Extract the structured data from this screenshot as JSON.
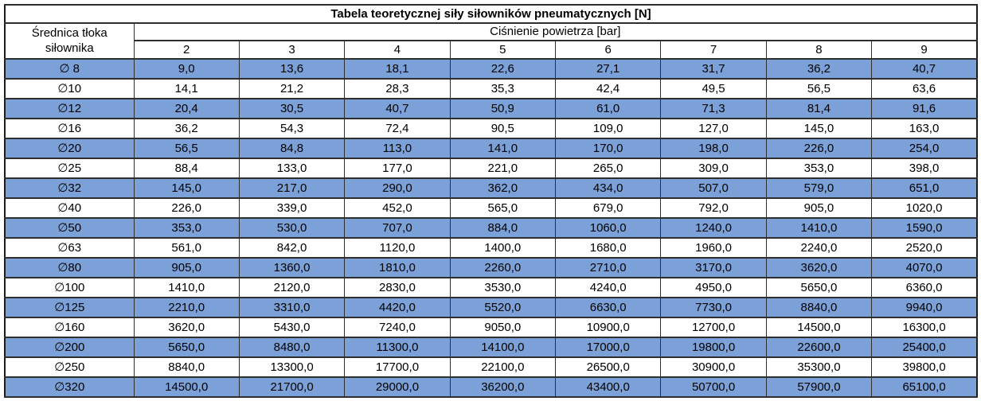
{
  "chart_data": {
    "type": "table",
    "title": "Tabela teoretycznej siły siłowników pneumatycznych [N]",
    "row_header_label": "Średnica tłoka siłownika",
    "column_group_label": "Ciśnienie powietrza [bar]",
    "columns": [
      "2",
      "3",
      "4",
      "5",
      "6",
      "7",
      "8",
      "9"
    ],
    "rows": [
      {
        "diameter": "∅ 8",
        "values": [
          "9,0",
          "13,6",
          "18,1",
          "22,6",
          "27,1",
          "31,7",
          "36,2",
          "40,7"
        ]
      },
      {
        "diameter": "∅10",
        "values": [
          "14,1",
          "21,2",
          "28,3",
          "35,3",
          "42,4",
          "49,5",
          "56,5",
          "63,6"
        ]
      },
      {
        "diameter": "∅12",
        "values": [
          "20,4",
          "30,5",
          "40,7",
          "50,9",
          "61,0",
          "71,3",
          "81,4",
          "91,6"
        ]
      },
      {
        "diameter": "∅16",
        "values": [
          "36,2",
          "54,3",
          "72,4",
          "90,5",
          "109,0",
          "127,0",
          "145,0",
          "163,0"
        ]
      },
      {
        "diameter": "∅20",
        "values": [
          "56,5",
          "84,8",
          "113,0",
          "141,0",
          "170,0",
          "198,0",
          "226,0",
          "254,0"
        ]
      },
      {
        "diameter": "∅25",
        "values": [
          "88,4",
          "133,0",
          "177,0",
          "221,0",
          "265,0",
          "309,0",
          "353,0",
          "398,0"
        ]
      },
      {
        "diameter": "∅32",
        "values": [
          "145,0",
          "217,0",
          "290,0",
          "362,0",
          "434,0",
          "507,0",
          "579,0",
          "651,0"
        ]
      },
      {
        "diameter": "∅40",
        "values": [
          "226,0",
          "339,0",
          "452,0",
          "565,0",
          "679,0",
          "792,0",
          "905,0",
          "1020,0"
        ]
      },
      {
        "diameter": "∅50",
        "values": [
          "353,0",
          "530,0",
          "707,0",
          "884,0",
          "1060,0",
          "1240,0",
          "1410,0",
          "1590,0"
        ]
      },
      {
        "diameter": "∅63",
        "values": [
          "561,0",
          "842,0",
          "1120,0",
          "1400,0",
          "1680,0",
          "1960,0",
          "2240,0",
          "2520,0"
        ]
      },
      {
        "diameter": "∅80",
        "values": [
          "905,0",
          "1360,0",
          "1810,0",
          "2260,0",
          "2710,0",
          "3170,0",
          "3620,0",
          "4070,0"
        ]
      },
      {
        "diameter": "∅100",
        "values": [
          "1410,0",
          "2120,0",
          "2830,0",
          "3530,0",
          "4240,0",
          "4950,0",
          "5650,0",
          "6360,0"
        ]
      },
      {
        "diameter": "∅125",
        "values": [
          "2210,0",
          "3310,0",
          "4420,0",
          "5520,0",
          "6630,0",
          "7730,0",
          "8840,0",
          "9940,0"
        ]
      },
      {
        "diameter": "∅160",
        "values": [
          "3620,0",
          "5430,0",
          "7240,0",
          "9050,0",
          "10900,0",
          "12700,0",
          "14500,0",
          "16300,0"
        ]
      },
      {
        "diameter": "∅200",
        "values": [
          "5650,0",
          "8480,0",
          "11300,0",
          "14100,0",
          "17000,0",
          "19800,0",
          "22600,0",
          "25400,0"
        ]
      },
      {
        "diameter": "∅250",
        "values": [
          "8840,0",
          "13300,0",
          "17700,0",
          "22100,0",
          "26500,0",
          "30900,0",
          "35300,0",
          "39800,0"
        ]
      },
      {
        "diameter": "∅320",
        "values": [
          "14500,0",
          "21700,0",
          "29000,0",
          "36200,0",
          "43400,0",
          "50700,0",
          "57900,0",
          "65100,0"
        ]
      }
    ],
    "layout": {
      "grid": "all borders, dark thin grid",
      "striping": "data rows alternate blue/white starting with blue",
      "alignment": "all cells centered",
      "legend": "none"
    },
    "colors": {
      "stripe_blue": "#7CA1D8",
      "row_white": "#FFFFFF",
      "border": "#2E2E2E",
      "text": "#000000"
    }
  }
}
